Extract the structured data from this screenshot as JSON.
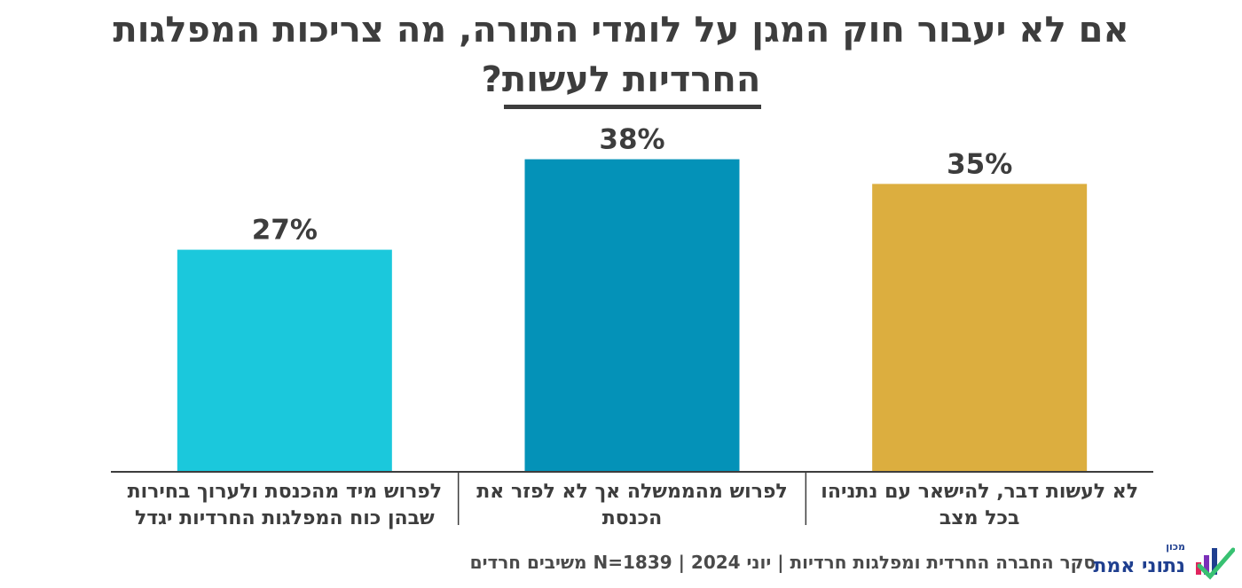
{
  "title": {
    "line1": "אם לא יעבור חוק המגן על לומדי התורה, מה צריכות המפלגות",
    "line2": "החרדיות לעשות?"
  },
  "chart_data": {
    "type": "bar",
    "categories": [
      [
        "לא לעשות דבר, להישאר עם נתניהו",
        "בכל מצב"
      ],
      [
        "לפרוש מהממשלה אך לא לפזר את",
        "הכנסת"
      ],
      [
        "לפרוש מיד מהכנסת ולערוך בחירות",
        "שבהן כוח המפלגות החרדיות יגדל"
      ]
    ],
    "values": [
      35,
      38,
      27
    ],
    "value_labels": [
      "35%",
      "38%",
      "27%"
    ],
    "colors": [
      "#dcae3f",
      "#0492b8",
      "#1bc8dc"
    ],
    "ylim": [
      0,
      40
    ],
    "grid": false,
    "legend": "none",
    "direction": "rtl"
  },
  "footer": "סקר החברה החרדית ומפלגות חרדיות | יוני 2024 | N=1839 משיבים חרדים",
  "logo": {
    "small": "מכון",
    "text": "נתוני אמת",
    "icon": "bar-chart-check-icon"
  }
}
